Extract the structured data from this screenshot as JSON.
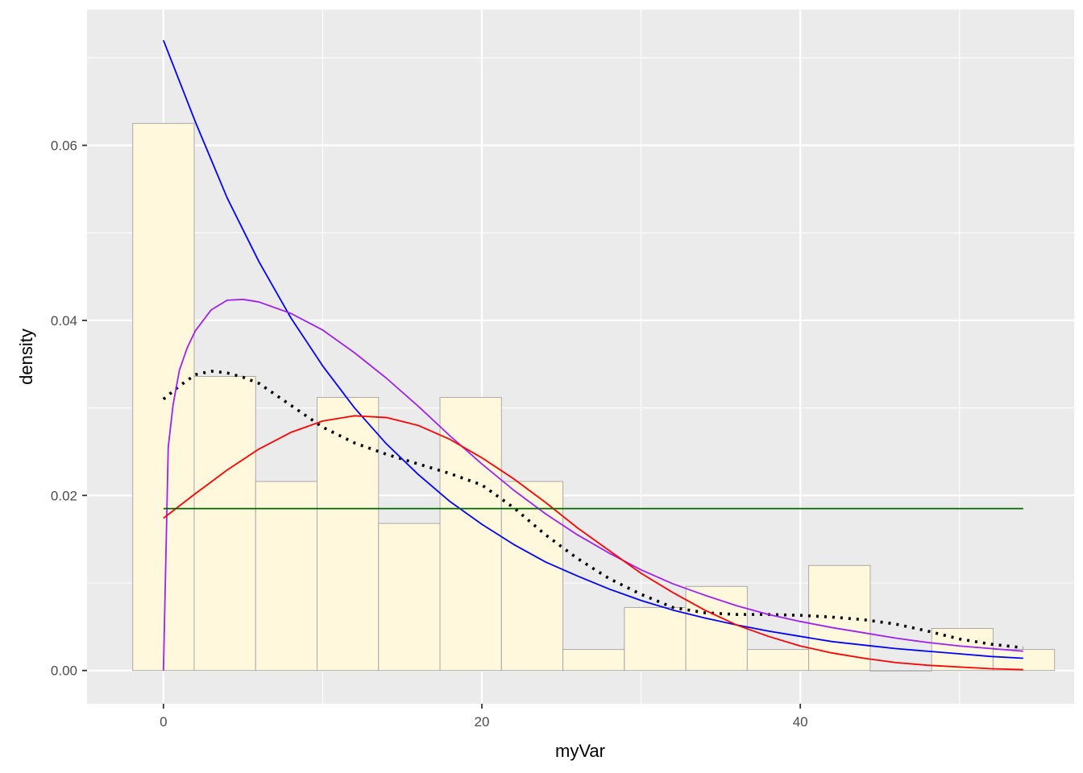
{
  "chart_data": {
    "type": "histogram",
    "xlabel": "myVar",
    "ylabel": "density",
    "xlim": [
      -4.8,
      57.2
    ],
    "ylim": [
      -0.0038,
      0.0755
    ],
    "x_ticks": [
      0,
      20,
      40
    ],
    "x_tick_labels": [
      "0",
      "20",
      "40"
    ],
    "y_ticks": [
      0.0,
      0.02,
      0.04,
      0.06
    ],
    "y_tick_labels": [
      "0.00",
      "0.02",
      "0.04",
      "0.06"
    ],
    "grid": true,
    "colors": {
      "panel": "#EBEBEB",
      "grid_major": "#FFFFFF",
      "bar_fill": "#FFF8DC",
      "bar_stroke": "#A9A9A9",
      "empirical_density": "#000000",
      "exponential": "#0000FF",
      "gamma_like": "#A020F0",
      "normal": "#FF0000",
      "uniform": "#006400"
    },
    "bins": [
      {
        "start": -1.93,
        "end": 1.93,
        "density": 0.0625
      },
      {
        "start": 1.93,
        "end": 5.79,
        "density": 0.0336
      },
      {
        "start": 5.79,
        "end": 9.65,
        "density": 0.0216
      },
      {
        "start": 9.65,
        "end": 13.51,
        "density": 0.0312
      },
      {
        "start": 13.51,
        "end": 17.37,
        "density": 0.0168
      },
      {
        "start": 17.37,
        "end": 21.23,
        "density": 0.0312
      },
      {
        "start": 21.23,
        "end": 25.09,
        "density": 0.0216
      },
      {
        "start": 25.09,
        "end": 28.95,
        "density": 0.0024
      },
      {
        "start": 28.95,
        "end": 32.81,
        "density": 0.0072
      },
      {
        "start": 32.81,
        "end": 36.67,
        "density": 0.0096
      },
      {
        "start": 36.67,
        "end": 40.53,
        "density": 0.0024
      },
      {
        "start": 40.53,
        "end": 44.39,
        "density": 0.012
      },
      {
        "start": 44.39,
        "end": 48.25,
        "density": 0.0
      },
      {
        "start": 48.25,
        "end": 52.11,
        "density": 0.0048
      },
      {
        "start": 52.11,
        "end": 55.97,
        "density": 0.0024
      }
    ],
    "series": [
      {
        "style": "dotted",
        "color": "#000000",
        "x": [
          0,
          1,
          2,
          3,
          4,
          5,
          6,
          8,
          10,
          12,
          14,
          16,
          18,
          20,
          22,
          24,
          26,
          28,
          30,
          32,
          34,
          36,
          38,
          40,
          42,
          44,
          46,
          48,
          50,
          52,
          54
        ],
        "y": [
          0.031,
          0.0325,
          0.0338,
          0.0342,
          0.034,
          0.0335,
          0.0328,
          0.0303,
          0.0278,
          0.026,
          0.0247,
          0.0236,
          0.0225,
          0.0212,
          0.0186,
          0.0155,
          0.0128,
          0.0105,
          0.0087,
          0.0072,
          0.0066,
          0.0064,
          0.0064,
          0.0063,
          0.0061,
          0.0058,
          0.0053,
          0.0045,
          0.0036,
          0.003,
          0.0026
        ]
      },
      {
        "style": "solid",
        "color": "#0000FF",
        "x": [
          0,
          2,
          4,
          6,
          8,
          10,
          12,
          14,
          16,
          18,
          20,
          22,
          24,
          26,
          28,
          30,
          32,
          34,
          36,
          38,
          40,
          42,
          44,
          46,
          48,
          50,
          52,
          54
        ],
        "y": [
          0.072,
          0.0627,
          0.054,
          0.0467,
          0.0403,
          0.0348,
          0.03,
          0.0259,
          0.0224,
          0.0193,
          0.0167,
          0.0144,
          0.0124,
          0.0108,
          0.0093,
          0.008,
          0.0069,
          0.006,
          0.0052,
          0.0045,
          0.0039,
          0.0033,
          0.0029,
          0.0025,
          0.0022,
          0.0019,
          0.0016,
          0.0014
        ]
      },
      {
        "style": "solid",
        "color": "#A020F0",
        "x": [
          0,
          0.3,
          0.6,
          1,
          1.5,
          2,
          3,
          4,
          5,
          6,
          8,
          10,
          12,
          14,
          16,
          18,
          20,
          22,
          24,
          26,
          28,
          30,
          32,
          34,
          36,
          38,
          40,
          42,
          44,
          46,
          48,
          50,
          52,
          54
        ],
        "y": [
          0.0,
          0.0255,
          0.0303,
          0.0343,
          0.0369,
          0.0388,
          0.0412,
          0.0423,
          0.0424,
          0.0421,
          0.0408,
          0.0389,
          0.0363,
          0.0334,
          0.0302,
          0.0268,
          0.0236,
          0.0206,
          0.0179,
          0.0155,
          0.0134,
          0.0115,
          0.0099,
          0.0086,
          0.0074,
          0.0064,
          0.0056,
          0.0049,
          0.0043,
          0.0037,
          0.0032,
          0.0028,
          0.0025,
          0.0022
        ]
      },
      {
        "style": "solid",
        "color": "#FF0000",
        "x": [
          0,
          2,
          4,
          6,
          8,
          10,
          12,
          14,
          16,
          18,
          20,
          22,
          24,
          26,
          28,
          30,
          32,
          34,
          36,
          38,
          40,
          42,
          44,
          46,
          48,
          50,
          52,
          54
        ],
        "y": [
          0.0174,
          0.0202,
          0.0229,
          0.0253,
          0.0272,
          0.0285,
          0.0291,
          0.0289,
          0.028,
          0.0264,
          0.0243,
          0.0219,
          0.0192,
          0.0163,
          0.0137,
          0.0111,
          0.0089,
          0.0069,
          0.0052,
          0.0039,
          0.0028,
          0.002,
          0.0014,
          0.0009,
          0.0006,
          0.0004,
          0.0002,
          0.0001
        ]
      },
      {
        "style": "solid",
        "color": "#006400",
        "x": [
          0,
          54
        ],
        "y": [
          0.0185,
          0.0185
        ]
      }
    ]
  }
}
